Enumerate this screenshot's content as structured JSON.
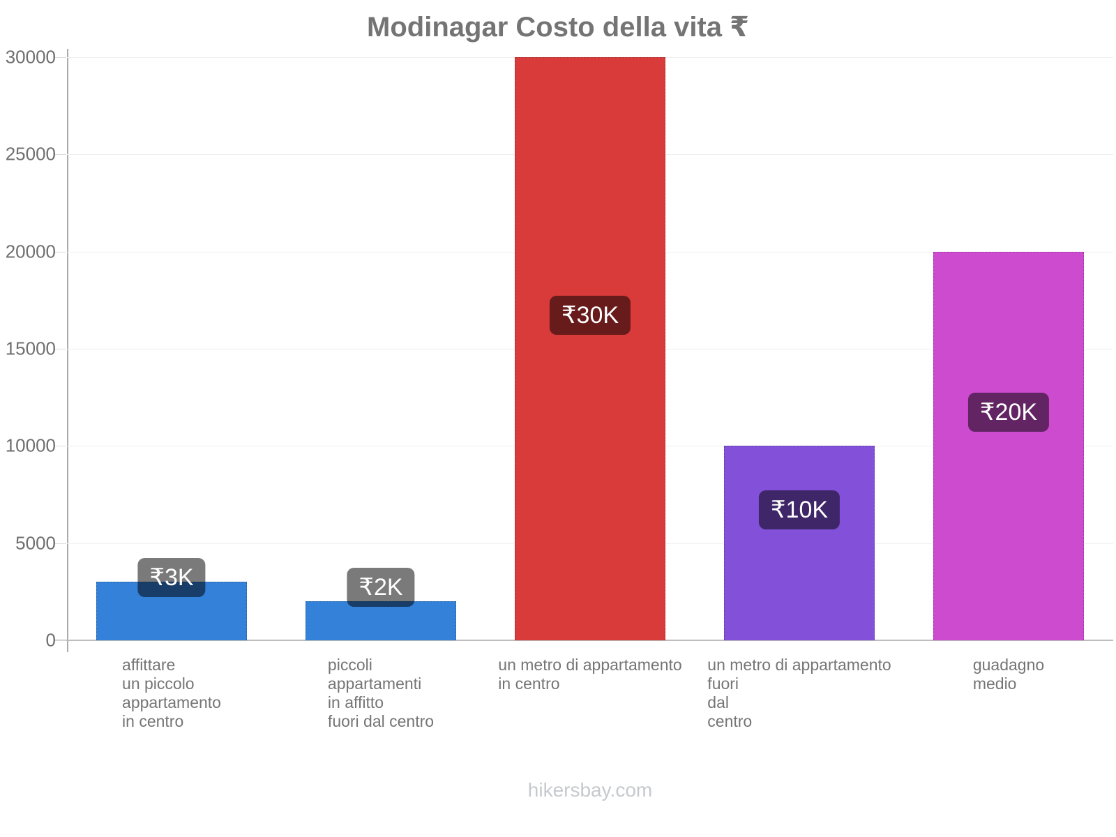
{
  "title": "Modinagar Costo della vita ₹",
  "footer": "hikersbay.com",
  "colors": {
    "title_text": "#747474",
    "axis_labels": "#6f6f6f",
    "category_labels": "#757575",
    "footer_text": "#c6c9ce",
    "gridline": "#efefef",
    "axis_line": "#ababab",
    "zero_line": "#bdbdbd",
    "badge_overlay": "rgba(0,0,0,0.52)",
    "badge_text": "#ffffff",
    "bar_blue": "#3481d9",
    "bar_red": "#d93a3a",
    "bar_purple": "#8351d9",
    "bar_magenta": "#cd4bce"
  },
  "chart_data": {
    "type": "bar",
    "title": "Modinagar Costo della vita ₹",
    "categories": [
      "affittare un piccolo appartamento in centro",
      "piccoli appartamenti in affitto fuori dal centro",
      "un metro di appartamento in centro",
      "un metro di appartamento fuori dal centro",
      "guadagno medio"
    ],
    "category_lines": [
      [
        "affittare",
        "un piccolo",
        "appartamento",
        "in centro"
      ],
      [
        "piccoli",
        "appartamenti",
        "in affitto",
        "fuori dal centro"
      ],
      [
        "un metro di appartamento",
        "in centro"
      ],
      [
        "un metro di appartamento",
        "fuori",
        "dal",
        "centro"
      ],
      [
        "guadagno",
        "medio"
      ]
    ],
    "values": [
      3000,
      2000,
      30000,
      10000,
      20000
    ],
    "value_labels": [
      "₹3K",
      "₹2K",
      "₹30K",
      "₹10K",
      "₹20K"
    ],
    "bar_colors": [
      "#3481d9",
      "#3481d9",
      "#d93a3a",
      "#8351d9",
      "#cd4bce"
    ],
    "currency": "₹",
    "xlabel": "",
    "ylabel": "",
    "ylim": [
      0,
      30000
    ],
    "yticks": [
      0,
      5000,
      10000,
      15000,
      20000,
      25000,
      30000
    ],
    "grid": "horizontal",
    "legend": "none"
  }
}
